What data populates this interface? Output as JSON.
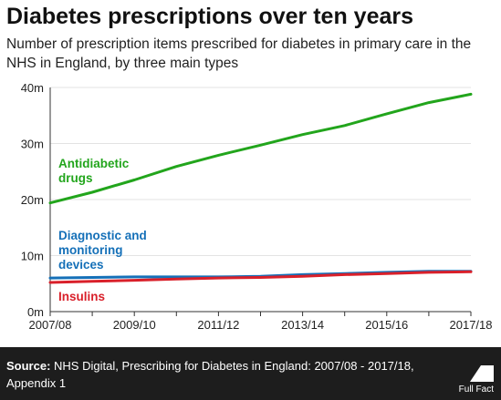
{
  "header": {
    "title": "Diabetes prescriptions over ten years",
    "subtitle": "Number of prescription items prescribed for diabetes in primary care in the NHS in England, by three main types"
  },
  "footer": {
    "source_label": "Source:",
    "source_text": "NHS Digital, Prescribing for Diabetes in England: 2007/08 - 2017/18, Appendix 1",
    "logo_text": "Full Fact"
  },
  "colors": {
    "antidiabetic": "#22a51c",
    "diagnostic": "#1570b8",
    "insulins": "#d9202a",
    "axis": "#333333",
    "grid": "#e3e3e3"
  },
  "chart_data": {
    "type": "line",
    "title": "Diabetes prescriptions over ten years",
    "x": [
      "2007/08",
      "2008/09",
      "2009/10",
      "2010/11",
      "2011/12",
      "2012/13",
      "2013/14",
      "2014/15",
      "2015/16",
      "2016/17",
      "2017/18"
    ],
    "x_tick_labels": [
      "2007/08",
      "2009/10",
      "2011/12",
      "2013/14",
      "2015/16",
      "2017/18"
    ],
    "ylim": [
      0,
      40
    ],
    "y_ticks": [
      0,
      10,
      20,
      30,
      40
    ],
    "y_tick_labels": [
      "0m",
      "10m",
      "20m",
      "30m",
      "40m"
    ],
    "grid": "horizontal",
    "series": [
      {
        "name": "Antidiabetic drugs",
        "label_lines": [
          "Antidiabetic",
          "drugs"
        ],
        "color": "#22a51c",
        "values": [
          19.4,
          21.3,
          23.5,
          25.9,
          27.9,
          29.7,
          31.6,
          33.2,
          35.3,
          37.3,
          38.8
        ]
      },
      {
        "name": "Diagnostic and monitoring devices",
        "label_lines": [
          "Diagnostic and",
          "monitoring",
          "devices"
        ],
        "color": "#1570b8",
        "values": [
          6.0,
          6.1,
          6.2,
          6.2,
          6.2,
          6.3,
          6.6,
          6.8,
          7.0,
          7.2,
          7.2
        ]
      },
      {
        "name": "Insulins",
        "label_lines": [
          "Insulins"
        ],
        "color": "#d9202a",
        "values": [
          5.2,
          5.4,
          5.6,
          5.8,
          6.0,
          6.1,
          6.3,
          6.6,
          6.8,
          7.0,
          7.1
        ]
      }
    ]
  }
}
